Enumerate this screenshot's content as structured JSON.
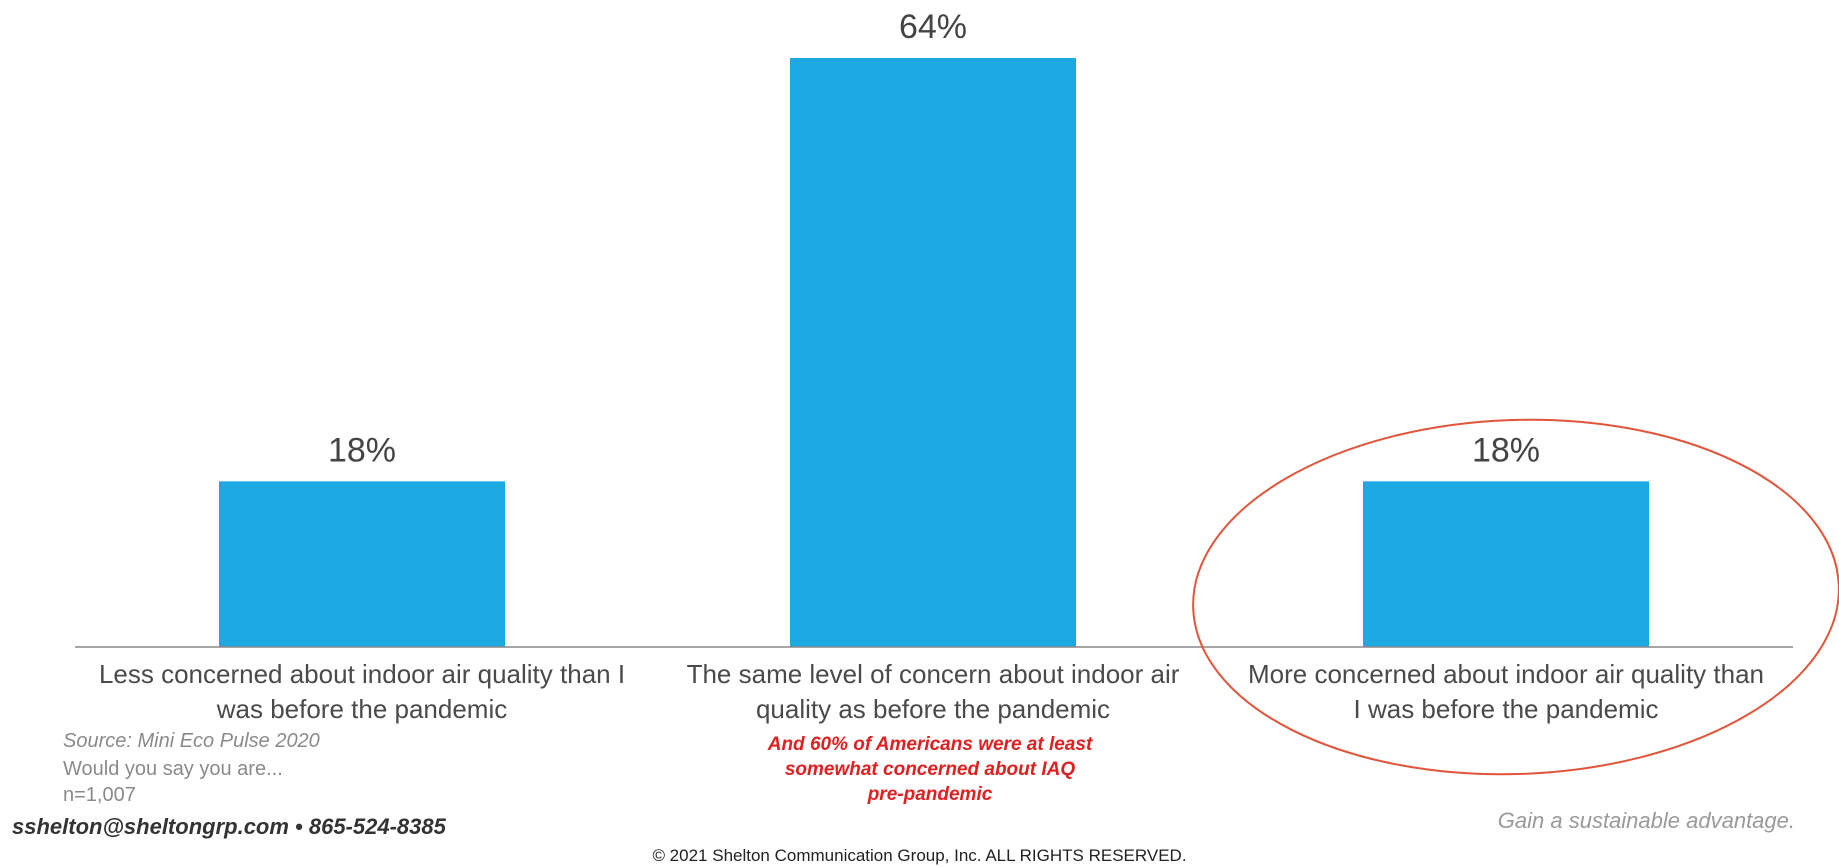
{
  "chart_data": {
    "type": "bar",
    "categories": [
      "Less concerned about indoor air quality than I was before the pandemic",
      "The same level of concern about indoor air quality as before the pandemic",
      "More concerned about indoor air quality than I was before the pandemic"
    ],
    "category_lines": [
      [
        "Less concerned about indoor air quality than I",
        "was before the pandemic"
      ],
      [
        "The same level of concern about indoor air",
        "quality as before the pandemic"
      ],
      [
        "More concerned about indoor air quality than",
        "I was before the pandemic"
      ]
    ],
    "values": [
      18,
      64,
      18
    ],
    "value_labels": [
      "18%",
      "64%",
      "18%"
    ],
    "unit": "%",
    "ylim": [
      0,
      64
    ],
    "grid": false,
    "highlighted_category_index": 2
  },
  "colors": {
    "bar": "#1ca9e1",
    "axis": "#888888",
    "highlight_ellipse": "#e2553a",
    "annotation": "#e02020"
  },
  "footer": {
    "source": "Source: Mini Eco Pulse 2020",
    "question": "Would you say you are...",
    "sample": "n=1,007",
    "annotation_lines": [
      "And 60% of Americans were at least",
      "somewhat concerned about IAQ",
      "pre-pandemic"
    ],
    "contact": "sshelton@sheltongrp.com • 865-524-8385",
    "tagline": "Gain a sustainable advantage.",
    "copyright": "© 2021 Shelton Communication Group, Inc.  ALL RIGHTS RESERVED."
  }
}
